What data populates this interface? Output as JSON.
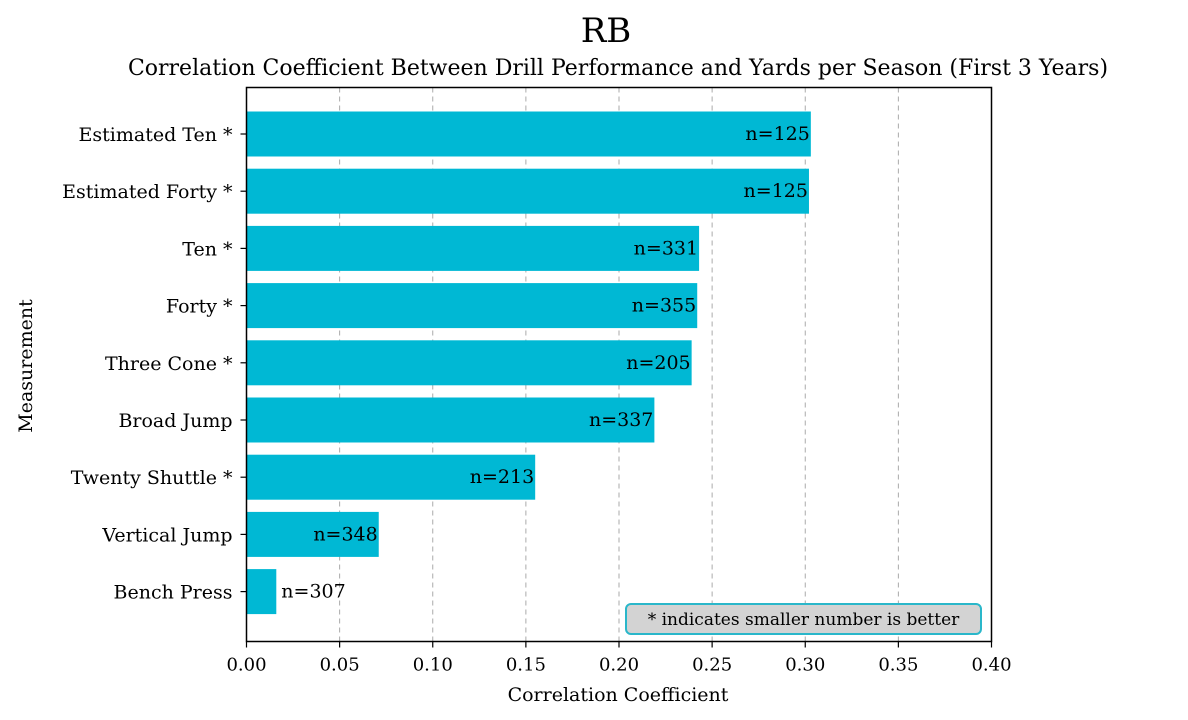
{
  "chart_data": {
    "type": "bar",
    "orientation": "horizontal",
    "suptitle": "RB",
    "title": "Correlation Coefficient Between Drill Performance and Yards per Season (First 3 Years)",
    "xlabel": "Correlation Coefficient",
    "ylabel": "Measurement",
    "xlim": [
      0.0,
      0.4
    ],
    "xticks": [
      "0.00",
      "0.05",
      "0.10",
      "0.15",
      "0.20",
      "0.25",
      "0.30",
      "0.35",
      "0.40"
    ],
    "xtick_values": [
      0.0,
      0.05,
      0.1,
      0.15,
      0.2,
      0.25,
      0.3,
      0.35,
      0.4
    ],
    "grid": "x-dashed",
    "bar_color": "#00b8d4",
    "categories": [
      "Estimated Ten *",
      "Estimated Forty *",
      "Ten *",
      "Forty *",
      "Three Cone *",
      "Broad Jump",
      "Twenty Shuttle *",
      "Vertical Jump",
      "Bench Press"
    ],
    "values": [
      0.303,
      0.302,
      0.243,
      0.242,
      0.239,
      0.219,
      0.155,
      0.071,
      0.016
    ],
    "bar_labels": [
      "n=125",
      "n=125",
      "n=331",
      "n=355",
      "n=205",
      "n=337",
      "n=213",
      "n=348",
      "n=307"
    ],
    "annotation": {
      "text": "* indicates smaller number is better",
      "placement": "bottom-right",
      "box_color": "#d3d3d3",
      "border_color": "#2ab7ca"
    }
  }
}
